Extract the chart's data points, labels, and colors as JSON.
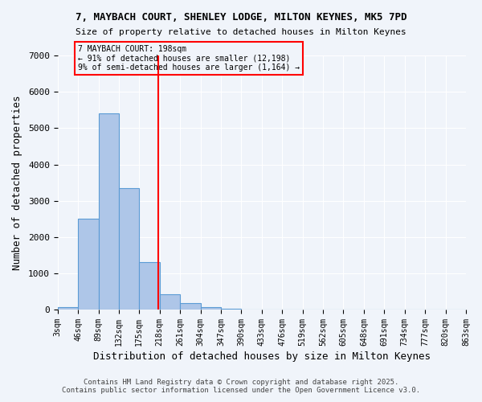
{
  "title": "7, MAYBACH COURT, SHENLEY LODGE, MILTON KEYNES, MK5 7PD",
  "subtitle": "Size of property relative to detached houses in Milton Keynes",
  "xlabel": "Distribution of detached houses by size in Milton Keynes",
  "ylabel": "Number of detached properties",
  "bin_labels": [
    "3sqm",
    "46sqm",
    "89sqm",
    "132sqm",
    "175sqm",
    "218sqm",
    "261sqm",
    "304sqm",
    "347sqm",
    "390sqm",
    "433sqm",
    "476sqm",
    "519sqm",
    "562sqm",
    "605sqm",
    "648sqm",
    "691sqm",
    "734sqm",
    "777sqm",
    "820sqm",
    "863sqm"
  ],
  "bar_values": [
    75,
    2500,
    5400,
    3350,
    1300,
    430,
    190,
    75,
    30,
    10,
    0,
    0,
    0,
    0,
    0,
    0,
    0,
    0,
    0,
    0
  ],
  "bar_color": "#aec6e8",
  "bar_edge_color": "#5b9bd5",
  "vline_x": 4.93,
  "vline_color": "red",
  "annotation_title": "7 MAYBACH COURT: 198sqm",
  "annotation_line1": "← 91% of detached houses are smaller (12,198)",
  "annotation_line2": "9% of semi-detached houses are larger (1,164) →",
  "annotation_box_color": "red",
  "ylim": [
    0,
    7000
  ],
  "yticks": [
    0,
    1000,
    2000,
    3000,
    4000,
    5000,
    6000,
    7000
  ],
  "footer_line1": "Contains HM Land Registry data © Crown copyright and database right 2025.",
  "footer_line2": "Contains public sector information licensed under the Open Government Licence v3.0.",
  "bg_color": "#f0f4fa",
  "grid_color": "white"
}
